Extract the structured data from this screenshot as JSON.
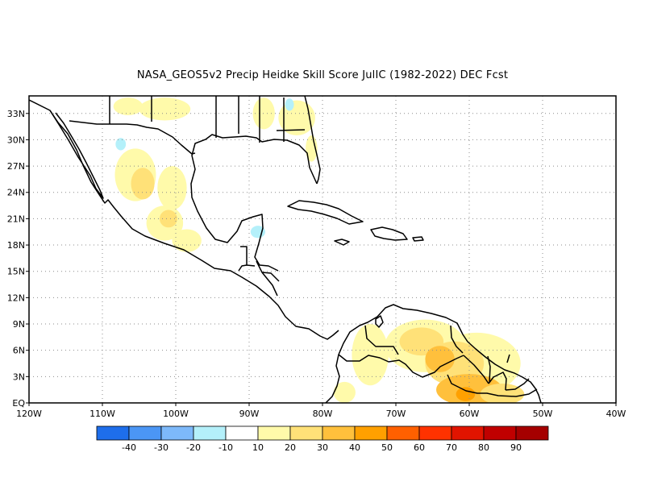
{
  "title": "NASA_GEOS5v2 Precip Heidke Skill Score JulIC (1982-2022) DEC Fcst",
  "map": {
    "lon_range": [
      -120,
      -40
    ],
    "lat_range": [
      0,
      35
    ],
    "lat_ticks": [
      "EQ",
      "3N",
      "6N",
      "9N",
      "12N",
      "15N",
      "18N",
      "21N",
      "24N",
      "27N",
      "30N",
      "33N"
    ],
    "lon_ticks": [
      "120W",
      "110W",
      "100W",
      "90W",
      "80W",
      "70W",
      "60W",
      "50W",
      "40W"
    ],
    "gridlines": "dotted",
    "coastline_color": "#000000"
  },
  "colorbar": {
    "bins": [
      {
        "color": "#1e6eeb"
      },
      {
        "color": "#4b96f5"
      },
      {
        "color": "#7db9fa"
      },
      {
        "color": "#b4f0fa"
      },
      {
        "color": "#ffffff"
      },
      {
        "color": "#fffaaa"
      },
      {
        "color": "#ffe178"
      },
      {
        "color": "#ffc03c"
      },
      {
        "color": "#ffa000"
      },
      {
        "color": "#ff6000"
      },
      {
        "color": "#ff3200"
      },
      {
        "color": "#e11400"
      },
      {
        "color": "#c00000"
      },
      {
        "color": "#a50000"
      }
    ],
    "labels": [
      "-40",
      "-30",
      "-20",
      "-10",
      "10",
      "20",
      "30",
      "40",
      "50",
      "60",
      "70",
      "80",
      "90"
    ]
  },
  "field_patches": [
    {
      "lon": -105.5,
      "lat": 26.0,
      "rx": 2.8,
      "ry": 3.0,
      "color": "#fffaaa"
    },
    {
      "lon": -104.5,
      "lat": 25.0,
      "rx": 1.6,
      "ry": 1.8,
      "color": "#ffe178"
    },
    {
      "lon": -100.5,
      "lat": 24.5,
      "rx": 2.0,
      "ry": 2.5,
      "color": "#fffaaa"
    },
    {
      "lon": -101.5,
      "lat": 20.5,
      "rx": 2.5,
      "ry": 2.0,
      "color": "#fffaaa"
    },
    {
      "lon": -101.0,
      "lat": 21.0,
      "rx": 1.2,
      "ry": 1.0,
      "color": "#ffe178"
    },
    {
      "lon": -98.5,
      "lat": 18.5,
      "rx": 2.0,
      "ry": 1.3,
      "color": "#fffaaa"
    },
    {
      "lon": -106.5,
      "lat": 33.8,
      "rx": 2.0,
      "ry": 1.0,
      "color": "#fffaaa"
    },
    {
      "lon": -101.5,
      "lat": 33.5,
      "rx": 3.5,
      "ry": 1.3,
      "color": "#fffaaa"
    },
    {
      "lon": -88.0,
      "lat": 33.0,
      "rx": 1.5,
      "ry": 1.8,
      "color": "#fffaaa"
    },
    {
      "lon": -83.5,
      "lat": 32.5,
      "rx": 2.5,
      "ry": 2.0,
      "color": "#fffaaa"
    },
    {
      "lon": -81.5,
      "lat": 29.0,
      "rx": 0.8,
      "ry": 1.5,
      "color": "#fffaaa"
    },
    {
      "lon": -107.5,
      "lat": 29.5,
      "rx": 0.7,
      "ry": 0.7,
      "color": "#b4f0fa"
    },
    {
      "lon": -88.8,
      "lat": 19.5,
      "rx": 1.0,
      "ry": 0.7,
      "color": "#b4f0fa"
    },
    {
      "lon": -84.5,
      "lat": 34.0,
      "rx": 0.6,
      "ry": 0.7,
      "color": "#b4f0fa"
    },
    {
      "lon": -73.5,
      "lat": 5.5,
      "rx": 2.5,
      "ry": 3.5,
      "color": "#fffaaa"
    },
    {
      "lon": -66.0,
      "lat": 6.5,
      "rx": 5.5,
      "ry": 3.0,
      "color": "#fffaaa"
    },
    {
      "lon": -59.0,
      "lat": 4.5,
      "rx": 6.0,
      "ry": 3.5,
      "color": "#fffaaa"
    },
    {
      "lon": -66.5,
      "lat": 7.0,
      "rx": 3.0,
      "ry": 1.6,
      "color": "#ffe178"
    },
    {
      "lon": -62.0,
      "lat": 4.5,
      "rx": 4.0,
      "ry": 2.5,
      "color": "#ffe178"
    },
    {
      "lon": -64.0,
      "lat": 5.0,
      "rx": 2.0,
      "ry": 1.5,
      "color": "#ffc03c"
    },
    {
      "lon": -60.0,
      "lat": 1.5,
      "rx": 4.5,
      "ry": 1.8,
      "color": "#ffc03c"
    },
    {
      "lon": -60.5,
      "lat": 1.0,
      "rx": 1.3,
      "ry": 0.8,
      "color": "#ffa000"
    },
    {
      "lon": -55.5,
      "lat": 1.0,
      "rx": 3.0,
      "ry": 1.2,
      "color": "#ffe178"
    },
    {
      "lon": -77.0,
      "lat": 1.2,
      "rx": 1.5,
      "ry": 1.2,
      "color": "#fffaaa"
    }
  ]
}
